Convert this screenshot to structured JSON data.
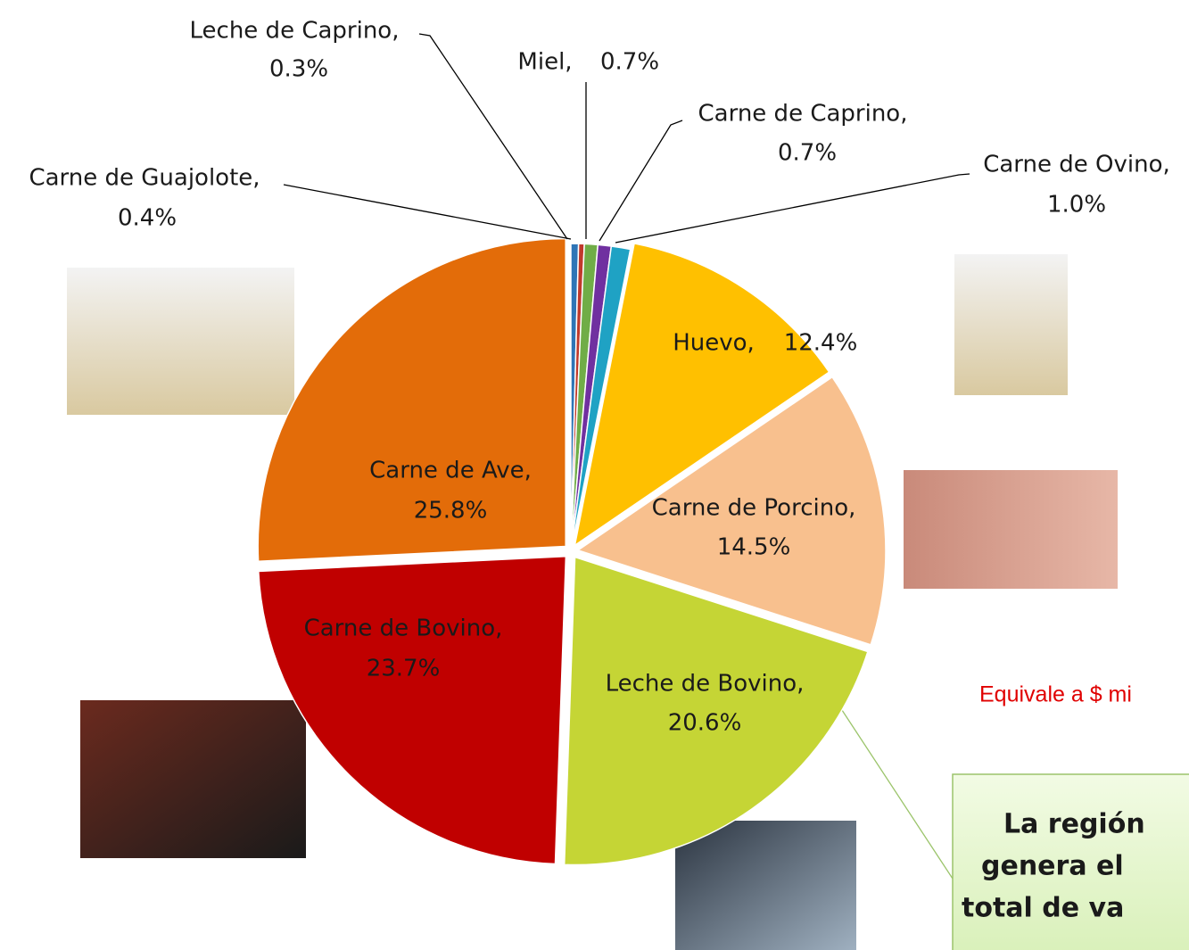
{
  "chart_data": {
    "type": "pie",
    "categories": [
      "Carne de Guajolote,",
      "Leche de Caprino,",
      "Miel,",
      "Carne de Caprino,",
      "Carne de Ovino,",
      "Huevo,",
      "Carne de Porcino,",
      "Leche de Bovino,",
      "Carne de Bovino,",
      "Carne de Ave,"
    ],
    "values": [
      0.4,
      0.3,
      0.7,
      0.7,
      1.0,
      12.4,
      14.5,
      20.6,
      23.7,
      25.8
    ],
    "value_labels": [
      "0.4%",
      "0.3%",
      "0.7%",
      "0.7%",
      "1.0%",
      "12.4%",
      "14.5%",
      "20.6%",
      "23.7%",
      "25.8%"
    ],
    "colors": [
      "#2e75b6",
      "#c0392b",
      "#70ad47",
      "#7030a0",
      "#1fa2c4",
      "#ffc000",
      "#f8c08e",
      "#c5d535",
      "#c00000",
      "#e36c09"
    ],
    "annotation": "Equivale a $ mi",
    "callout": [
      "La región",
      "genera el",
      "total de va"
    ]
  }
}
